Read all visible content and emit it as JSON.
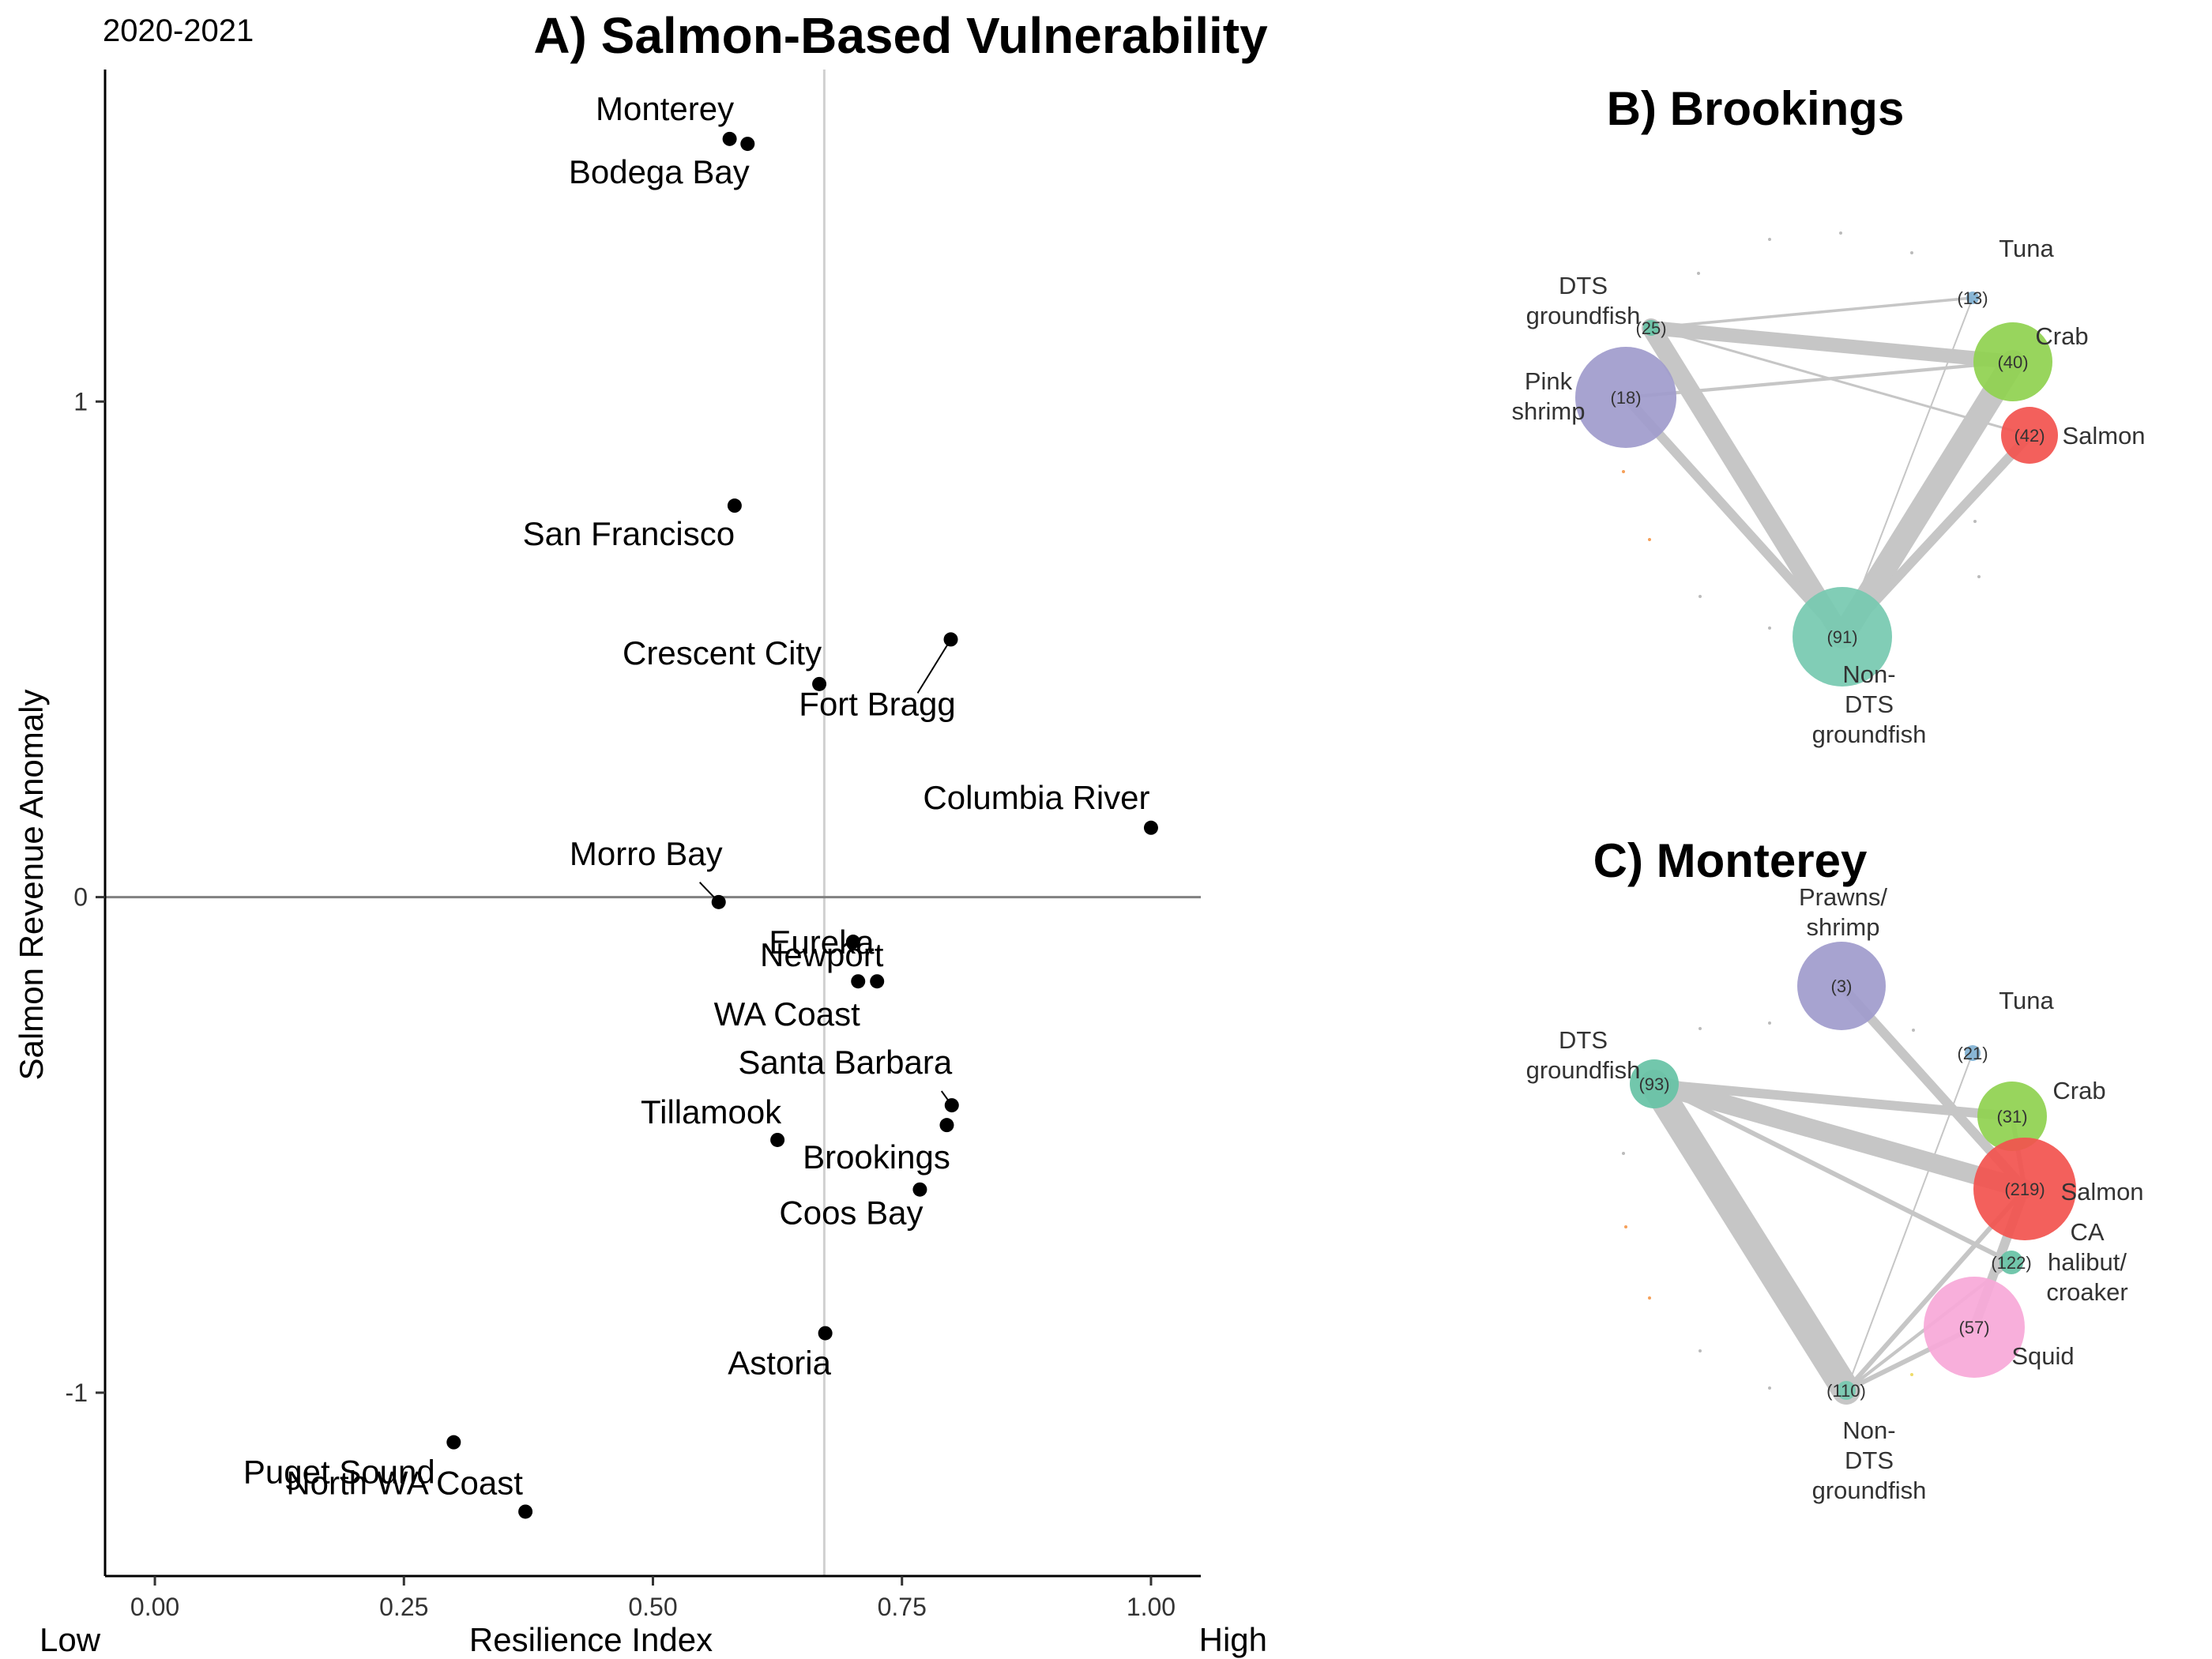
{
  "period_label": "2020-2021",
  "chart_data": [
    {
      "type": "scatter",
      "title": "A) Salmon-Based Vulnerability",
      "xlabel": "Resilience Index",
      "ylabel": "Salmon Revenue Anomaly",
      "x_low_label": "Low",
      "x_high_label": "High",
      "xlim": [
        -0.05,
        1.05
      ],
      "ylim": [
        -1.37,
        1.67
      ],
      "xticks": [
        0.0,
        0.25,
        0.5,
        0.75,
        1.0
      ],
      "xtick_labels": [
        "0.00",
        "0.25",
        "0.50",
        "0.75",
        "1.00"
      ],
      "yticks": [
        -1,
        0,
        1
      ],
      "ytick_labels": [
        "-1",
        "0",
        "1"
      ],
      "vline_x": 0.672,
      "hline_y": 0,
      "grid": false,
      "points": [
        {
          "label": "Monterey",
          "x": 0.577,
          "y": 1.53
        },
        {
          "label": "Bodega Bay",
          "x": 0.595,
          "y": 1.52
        },
        {
          "label": "San Francisco",
          "x": 0.582,
          "y": 0.79
        },
        {
          "label": "Crescent City",
          "x": 0.667,
          "y": 0.43
        },
        {
          "label": "Fort Bragg",
          "x": 0.799,
          "y": 0.52
        },
        {
          "label": "Columbia River",
          "x": 1.0,
          "y": 0.14
        },
        {
          "label": "Morro Bay",
          "x": 0.566,
          "y": -0.01
        },
        {
          "label": "Eureka",
          "x": 0.701,
          "y": -0.09
        },
        {
          "label": "Newport",
          "x": 0.725,
          "y": -0.17
        },
        {
          "label": "WA Coast",
          "x": 0.706,
          "y": -0.17
        },
        {
          "label": "Santa Barbara",
          "x": 0.8,
          "y": -0.42
        },
        {
          "label": "Tillamook",
          "x": 0.625,
          "y": -0.49
        },
        {
          "label": "Brookings",
          "x": 0.795,
          "y": -0.46
        },
        {
          "label": "Coos Bay",
          "x": 0.768,
          "y": -0.59
        },
        {
          "label": "Astoria",
          "x": 0.673,
          "y": -0.88
        },
        {
          "label": "Puget Sound",
          "x": 0.3,
          "y": -1.1
        },
        {
          "label": "North WA Coast",
          "x": 0.372,
          "y": -1.24
        }
      ]
    },
    {
      "type": "network",
      "title": "B) Brookings",
      "nodes": [
        {
          "id": "dts",
          "label": "DTS\ngroundfish",
          "count": "(25)",
          "color": "#66c2a5"
        },
        {
          "id": "tuna",
          "label": "Tuna",
          "count": "(13)",
          "color": "#80b1d3"
        },
        {
          "id": "crab",
          "label": "Crab",
          "count": "(40)",
          "color": "#8fd14f"
        },
        {
          "id": "pink",
          "label": "Pink\nshrimp",
          "count": "(18)",
          "color": "#9f9bcc"
        },
        {
          "id": "salmon",
          "label": "Salmon",
          "count": "(42)",
          "color": "#f2524e"
        },
        {
          "id": "nondts",
          "label": "Non-\nDTS\ngroundfish",
          "count": "(91)",
          "color": "#76c9b0"
        }
      ],
      "edges": [
        {
          "source": "dts",
          "target": "tuna",
          "weight": 0.6
        },
        {
          "source": "dts",
          "target": "crab",
          "weight": 3
        },
        {
          "source": "dts",
          "target": "salmon",
          "weight": 0.5
        },
        {
          "source": "dts",
          "target": "nondts",
          "weight": 4
        },
        {
          "source": "pink",
          "target": "crab",
          "weight": 0.7
        },
        {
          "source": "pink",
          "target": "nondts",
          "weight": 2
        },
        {
          "source": "crab",
          "target": "nondts",
          "weight": 5
        },
        {
          "source": "salmon",
          "target": "nondts",
          "weight": 2
        },
        {
          "source": "tuna",
          "target": "nondts",
          "weight": 0.3
        }
      ]
    },
    {
      "type": "network",
      "title": "C) Monterey",
      "nodes": [
        {
          "id": "prawns",
          "label": "Prawns/\nshrimp",
          "count": "(3)",
          "color": "#9f9bcc"
        },
        {
          "id": "tuna",
          "label": "Tuna",
          "count": "(21)",
          "color": "#80b1d3"
        },
        {
          "id": "dts",
          "label": "DTS\ngroundfish",
          "count": "(93)",
          "color": "#66c2a5"
        },
        {
          "id": "crab",
          "label": "Crab",
          "count": "(31)",
          "color": "#8fd14f"
        },
        {
          "id": "salmon",
          "label": "Salmon",
          "count": "(219)",
          "color": "#f2524e"
        },
        {
          "id": "halibut",
          "label": "CA\nhalibut/\ncroaker",
          "count": "(122)",
          "color": "#66c2a5"
        },
        {
          "id": "squid",
          "label": "Squid",
          "count": "(57)",
          "color": "#f7a8d8"
        },
        {
          "id": "nondts",
          "label": "Non-\nDTS\ngroundfish",
          "count": "(110)",
          "color": "#76c9b0"
        }
      ],
      "edges": [
        {
          "source": "prawns",
          "target": "salmon",
          "weight": 2
        },
        {
          "source": "dts",
          "target": "crab",
          "weight": 2
        },
        {
          "source": "dts",
          "target": "salmon",
          "weight": 4
        },
        {
          "source": "dts",
          "target": "halibut",
          "weight": 1
        },
        {
          "source": "dts",
          "target": "nondts",
          "weight": 6
        },
        {
          "source": "salmon",
          "target": "nondts",
          "weight": 1
        },
        {
          "source": "halibut",
          "target": "nondts",
          "weight": 0.7
        },
        {
          "source": "squid",
          "target": "salmon",
          "weight": 2
        },
        {
          "source": "squid",
          "target": "nondts",
          "weight": 1
        },
        {
          "source": "tuna",
          "target": "nondts",
          "weight": 0.3
        },
        {
          "source": "crab",
          "target": "salmon",
          "weight": 1
        }
      ]
    }
  ]
}
